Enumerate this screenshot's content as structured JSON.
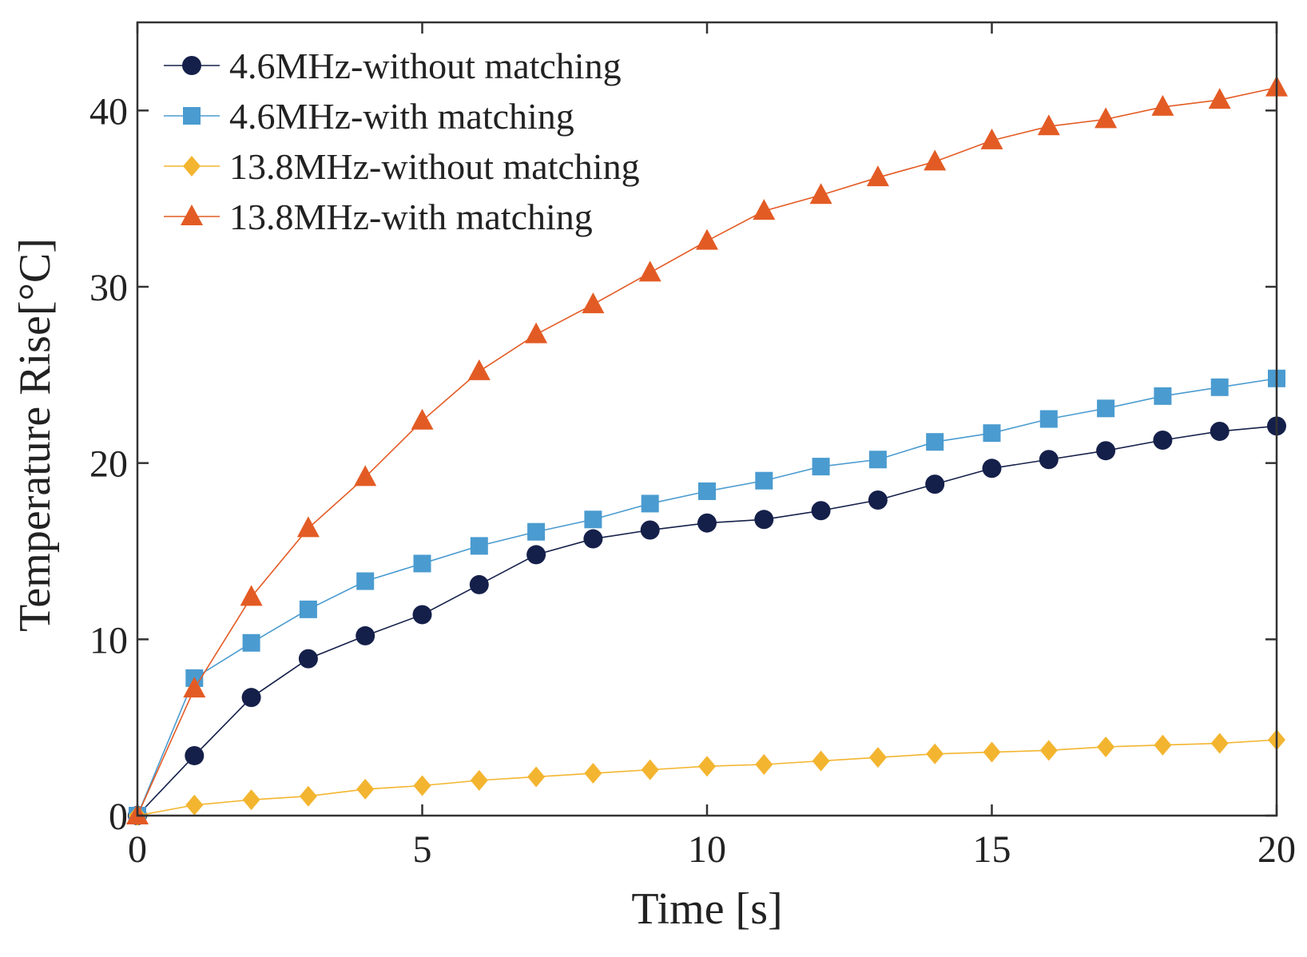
{
  "chart_data": {
    "type": "line",
    "title": "",
    "xlabel": "Time [s]",
    "ylabel": "Temperature Rise[°C]",
    "xlim": [
      0,
      20
    ],
    "ylim": [
      0,
      45
    ],
    "xticks": [
      0,
      5,
      10,
      15,
      20
    ],
    "yticks": [
      0,
      10,
      20,
      30,
      40
    ],
    "xtick_labels": [
      "0",
      "5",
      "10",
      "15",
      "20"
    ],
    "ytick_labels": [
      "0",
      "10",
      "20",
      "30",
      "40"
    ],
    "grid": false,
    "legend_position": "top-left",
    "x": [
      0,
      1,
      2,
      3,
      4,
      5,
      6,
      7,
      8,
      9,
      10,
      11,
      12,
      13,
      14,
      15,
      16,
      17,
      18,
      19,
      20
    ],
    "series": [
      {
        "name": "4.6MHz-without matching",
        "color": "#15204a",
        "marker": "circle",
        "values": [
          0,
          3.4,
          6.7,
          8.9,
          10.2,
          11.4,
          13.1,
          14.8,
          15.7,
          16.2,
          16.6,
          16.8,
          17.3,
          17.9,
          18.8,
          19.7,
          20.2,
          20.7,
          21.3,
          21.8,
          22.1
        ]
      },
      {
        "name": "4.6MHz-with matching",
        "color": "#4a9bd0",
        "marker": "square",
        "values": [
          0,
          7.8,
          9.8,
          11.7,
          13.3,
          14.3,
          15.3,
          16.1,
          16.8,
          17.7,
          18.4,
          19.0,
          19.8,
          20.2,
          21.2,
          21.7,
          22.5,
          23.1,
          23.8,
          24.3,
          24.8
        ]
      },
      {
        "name": "13.8MHz-without matching",
        "color": "#f3b530",
        "marker": "diamond",
        "values": [
          0,
          0.6,
          0.9,
          1.1,
          1.5,
          1.7,
          2.0,
          2.2,
          2.4,
          2.6,
          2.8,
          2.9,
          3.1,
          3.3,
          3.5,
          3.6,
          3.7,
          3.9,
          4.0,
          4.1,
          4.3
        ]
      },
      {
        "name": "13.8MHz-with matching",
        "color": "#e35b24",
        "marker": "triangle",
        "values": [
          0,
          7.2,
          12.4,
          16.3,
          19.2,
          22.4,
          25.2,
          27.3,
          29.0,
          30.8,
          32.6,
          34.3,
          35.2,
          36.2,
          37.1,
          38.3,
          39.1,
          39.5,
          40.2,
          40.6,
          41.3
        ]
      }
    ]
  }
}
